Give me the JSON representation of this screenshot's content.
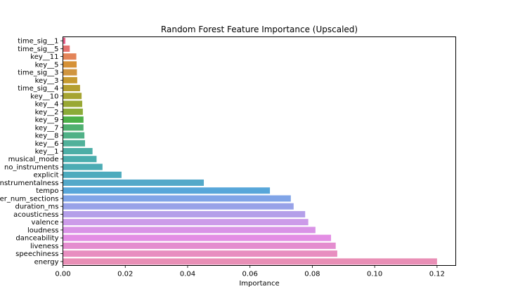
{
  "chart_data": {
    "type": "bar",
    "orientation": "horizontal",
    "title": "Random Forest Feature Importance (Upscaled)",
    "xlabel": "Importance",
    "ylabel": "",
    "xlim": [
      0,
      0.126
    ],
    "xticks": [
      0.0,
      0.02,
      0.04,
      0.06,
      0.08,
      0.1,
      0.12
    ],
    "xtick_labels": [
      "0.00",
      "0.02",
      "0.04",
      "0.06",
      "0.08",
      "0.10",
      "0.12"
    ],
    "grid": false,
    "categories": [
      "time_sig__1",
      "time_sig__5",
      "key__11",
      "key__5",
      "time_sig__3",
      "key__3",
      "time_sig__4",
      "key__10",
      "key__4",
      "key__2",
      "key__9",
      "key__7",
      "key__8",
      "key__6",
      "key__1",
      "musical_mode",
      "no_instruments",
      "explicit",
      "instrumentalness",
      "tempo",
      "number_num_sections",
      "duration_ms",
      "acousticness",
      "valence",
      "loudness",
      "danceability",
      "liveness",
      "speechiness",
      "energy"
    ],
    "category_labels_shown": [
      "time_sig__1",
      "time_sig__5",
      "key__11",
      "key__5",
      "time_sig__3",
      "key__3",
      "time_sig__4",
      "key__10",
      "key__4",
      "key__2",
      "key__9",
      "key__7",
      "key__8",
      "key__6",
      "key__1",
      "musical_mode",
      "no_instruments",
      "explicit",
      "instrumentalness",
      "tempo",
      "er_num_sections",
      "duration_ms",
      "acousticness",
      "valence",
      "loudness",
      "danceability",
      "liveness",
      "speechiness",
      "energy"
    ],
    "values": [
      0.0008,
      0.0022,
      0.0043,
      0.0044,
      0.0045,
      0.0046,
      0.0055,
      0.006,
      0.0062,
      0.0064,
      0.0066,
      0.0066,
      0.0069,
      0.0071,
      0.0095,
      0.0108,
      0.0127,
      0.0188,
      0.0452,
      0.0664,
      0.0731,
      0.074,
      0.0777,
      0.0787,
      0.081,
      0.086,
      0.0875,
      0.088,
      0.12
    ],
    "colors": [
      "#e8638b",
      "#e4726f",
      "#e38458",
      "#d69136",
      "#d0953f",
      "#c69a30",
      "#b49f30",
      "#a6a432",
      "#99a834",
      "#8bab38",
      "#4cb049",
      "#4fb070",
      "#50b187",
      "#50b19a",
      "#4caea6",
      "#4aadad",
      "#4cacb4",
      "#4dabbd",
      "#54a9c9",
      "#57a6d9",
      "#80a4e7",
      "#98a2e8",
      "#b49fe9",
      "#cc9be9",
      "#d993e6",
      "#e38ee4",
      "#e48dcf",
      "#e88ec0",
      "#e98fb6"
    ]
  }
}
